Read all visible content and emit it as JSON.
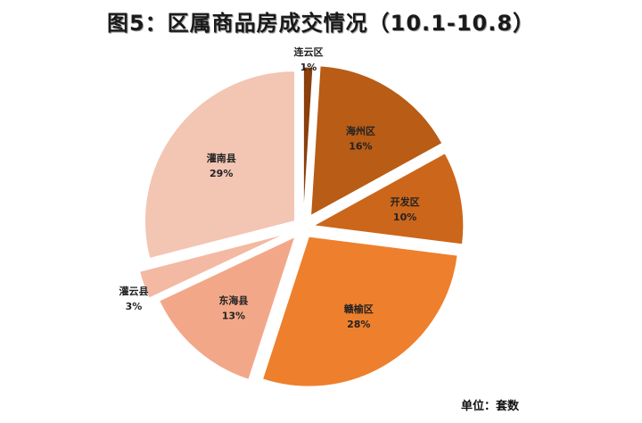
{
  "title": "图5：区属商品房成交情况（10.1-10.8）",
  "unit_label": "单位：套数",
  "chart_data": {
    "type": "pie",
    "exploded": true,
    "slices": [
      {
        "label": "连云区",
        "value": 1,
        "display": "1%",
        "color": "#8b3f0e"
      },
      {
        "label": "海州区",
        "value": 16,
        "display": "16%",
        "color": "#b85c16"
      },
      {
        "label": "开发区",
        "value": 10,
        "display": "10%",
        "color": "#cc661b"
      },
      {
        "label": "赣榆区",
        "value": 28,
        "display": "28%",
        "color": "#ee7f2c"
      },
      {
        "label": "东海县",
        "value": 13,
        "display": "13%",
        "color": "#f2a888"
      },
      {
        "label": "灌云县",
        "value": 3,
        "display": "3%",
        "color": "#f3b9a2"
      },
      {
        "label": "灌南县",
        "value": 29,
        "display": "29%",
        "color": "#f3c5b3"
      }
    ]
  }
}
